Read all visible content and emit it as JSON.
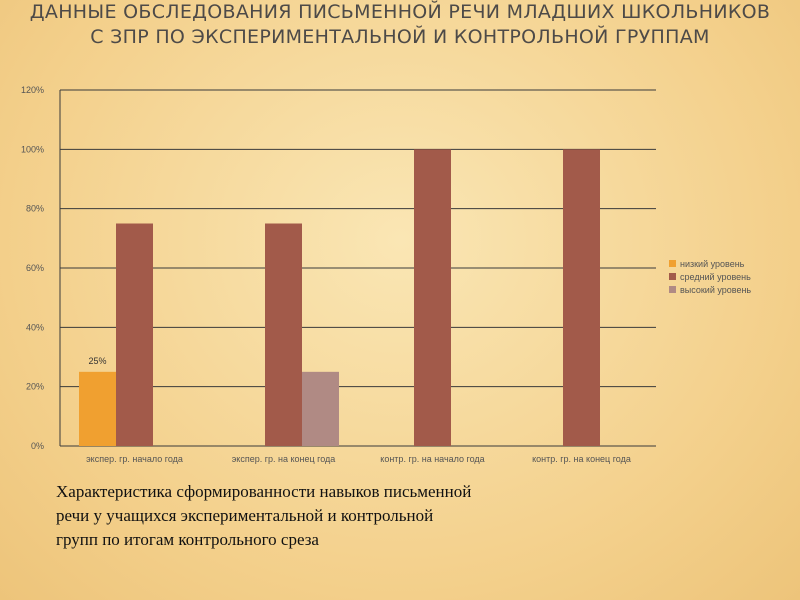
{
  "slide": {
    "title": "ДАННЫЕ ОБСЛЕДОВАНИЯ ПИСЬМЕННОЙ РЕЧИ МЛАДШИХ ШКОЛЬНИКОВ С ЗПР ПО ЭКСПЕРИМЕНТАЛЬНОЙ И КОНТРОЛЬНОЙ ГРУППАМ",
    "caption": "Характеристика сформированности навыков письменной речи у учащихся экспериментальной и контрольной групп по итогам контрольного среза"
  },
  "chart_data": {
    "type": "bar",
    "categories": [
      "экспер. гр. начало года",
      "экспер. гр. на конец года",
      "контр. гр. на начало года",
      "контр. гр. на конец года"
    ],
    "series": [
      {
        "name": "низкий уровень",
        "color": "#f0a030",
        "values": [
          25,
          0,
          0,
          0
        ]
      },
      {
        "name": "средний уровень",
        "color": "#a25a4a",
        "values": [
          75,
          75,
          100,
          100
        ]
      },
      {
        "name": "высокий уровень",
        "color": "#b08a84",
        "values": [
          0,
          25,
          0,
          0
        ]
      }
    ],
    "ylim": [
      0,
      120
    ],
    "yticks": [
      "0%",
      "20%",
      "40%",
      "60%",
      "80%",
      "100%",
      "120%"
    ],
    "data_labels": [
      {
        "series": 0,
        "category": 0,
        "text": "25%"
      }
    ],
    "grid": true,
    "legend": "right"
  }
}
